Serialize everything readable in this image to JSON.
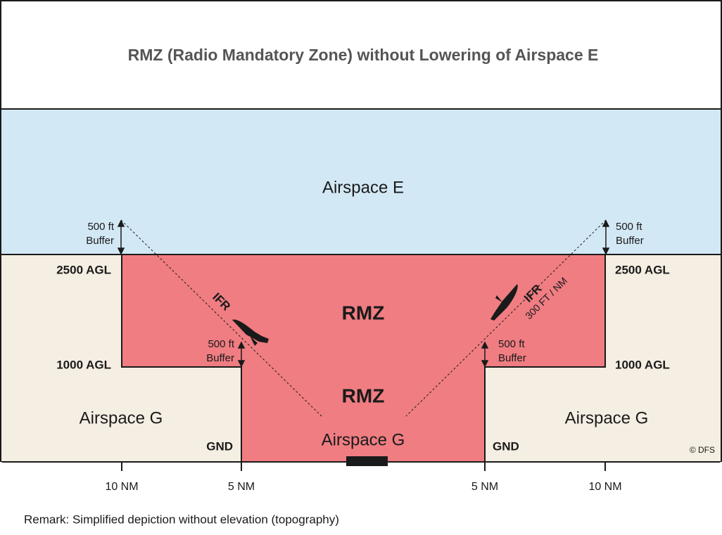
{
  "title": "RMZ (Radio Mandatory Zone) without Lowering of Airspace E",
  "airspace_e": "Airspace E",
  "rmz_upper": "RMZ",
  "rmz_lower": "RMZ",
  "airspace_g": {
    "left": "Airspace G",
    "center": "Airspace G",
    "right": "Airspace G"
  },
  "altitudes": {
    "left": [
      "2500 AGL",
      "1000 AGL",
      "GND"
    ],
    "right": [
      "2500 AGL",
      "1000 AGL",
      "GND"
    ]
  },
  "buffers": [
    [
      "500 ft",
      "Buffer"
    ],
    [
      "500 ft",
      "Buffer"
    ],
    [
      "500 ft",
      "Buffer"
    ],
    [
      "500 ft",
      "Buffer"
    ]
  ],
  "ifr": [
    "IFR",
    "IFR"
  ],
  "slope": "300 FT / NM",
  "copyright": "© DFS",
  "distances": [
    "10 NM",
    "5 NM",
    "5 NM",
    "10 NM"
  ],
  "remark": "Remark: Simplified depiction without elevation (topography)"
}
